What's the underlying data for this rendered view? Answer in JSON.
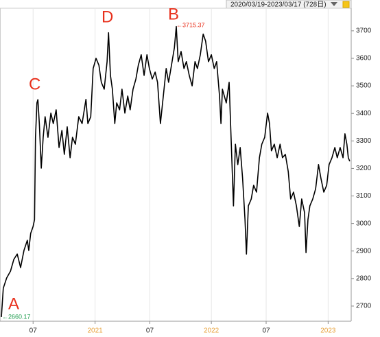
{
  "chart_data": {
    "type": "line",
    "header": "2020/03/19-2023/03/17 (728日)",
    "x": [
      0,
      4,
      11,
      19,
      26,
      33,
      40,
      47,
      54,
      57,
      61,
      66,
      69,
      71,
      74,
      76,
      79,
      83,
      87,
      91,
      97,
      103,
      108,
      114,
      120,
      126,
      131,
      137,
      143,
      148,
      154,
      161,
      168,
      176,
      180,
      186,
      191,
      197,
      203,
      208,
      214,
      220,
      223,
      227,
      231,
      236,
      240,
      246,
      251,
      257,
      263,
      268,
      274,
      280,
      285,
      291,
      297,
      303,
      308,
      314,
      320,
      325,
      331,
      337,
      343,
      348,
      354,
      360,
      364,
      368,
      374,
      380,
      385,
      391,
      397,
      403,
      408,
      414,
      420,
      425,
      431,
      437,
      443,
      448,
      454,
      457,
      460,
      468,
      474,
      478,
      483,
      487,
      492,
      497,
      502,
      507,
      510,
      514,
      520,
      525,
      531,
      537,
      542,
      548,
      554,
      558,
      562,
      568,
      574,
      580,
      585,
      591,
      597,
      602,
      608,
      614,
      620,
      625,
      631,
      634,
      638,
      642,
      648,
      654,
      660,
      665,
      671,
      677,
      682,
      688,
      694,
      699,
      705,
      711,
      715,
      719,
      722,
      725
    ],
    "series": [
      {
        "color": "#000000",
        "values": [
          2660.17,
          2765,
          2802,
          2827,
          2870,
          2889,
          2840,
          2902,
          2939,
          2902,
          2964,
          2989,
          3014,
          3313,
          3438,
          3450,
          3363,
          3201,
          3313,
          3388,
          3313,
          3401,
          3363,
          3413,
          3276,
          3338,
          3251,
          3351,
          3239,
          3313,
          3288,
          3388,
          3363,
          3451,
          3363,
          3388,
          3563,
          3600,
          3575,
          3513,
          3488,
          3588,
          3693,
          3538,
          3488,
          3363,
          3438,
          3413,
          3488,
          3401,
          3463,
          3413,
          3488,
          3525,
          3575,
          3613,
          3538,
          3613,
          3563,
          3525,
          3550,
          3513,
          3363,
          3463,
          3563,
          3513,
          3575,
          3638,
          3715.37,
          3588,
          3625,
          3563,
          3588,
          3538,
          3500,
          3588,
          3563,
          3613,
          3688,
          3663,
          3588,
          3613,
          3563,
          3588,
          3463,
          3363,
          3488,
          3438,
          3513,
          3313,
          3064,
          3288,
          3214,
          3276,
          3164,
          3014,
          2889,
          3064,
          3089,
          3139,
          3114,
          3239,
          3288,
          3313,
          3401,
          3363,
          3264,
          3288,
          3239,
          3288,
          3239,
          3251,
          3189,
          3089,
          3114,
          3064,
          2989,
          3089,
          3039,
          2894,
          3014,
          3064,
          3089,
          3126,
          3214,
          3164,
          3114,
          3139,
          3214,
          3239,
          3276,
          3239,
          3276,
          3239,
          3326,
          3288,
          3239,
          3226
        ]
      }
    ],
    "xlim": [
      0,
      728
    ],
    "xticks": [
      {
        "value": 66,
        "label": "07",
        "color": "#222222"
      },
      {
        "value": 195,
        "label": "2021",
        "color": "#e8a33d"
      },
      {
        "value": 309,
        "label": "07",
        "color": "#222222"
      },
      {
        "value": 437,
        "label": "2022",
        "color": "#e8a33d"
      },
      {
        "value": 551,
        "label": "07",
        "color": "#222222"
      },
      {
        "value": 680,
        "label": "2023",
        "color": "#e8a33d"
      }
    ],
    "ylim": [
      2645,
      3782
    ],
    "yticks": [
      2700,
      2800,
      2900,
      3000,
      3100,
      3200,
      3300,
      3400,
      3500,
      3600,
      3700
    ],
    "grid": true,
    "annotations": [
      {
        "text": "A",
        "color": "#e8301c"
      },
      {
        "text": "←2660.17",
        "color": "#1a9a4a"
      },
      {
        "text": "C",
        "color": "#e8301c"
      },
      {
        "text": "D",
        "color": "#e8301c"
      },
      {
        "text": "B",
        "color": "#e8301c"
      },
      {
        "text": "←3715.37",
        "color": "#e8301c"
      }
    ]
  }
}
